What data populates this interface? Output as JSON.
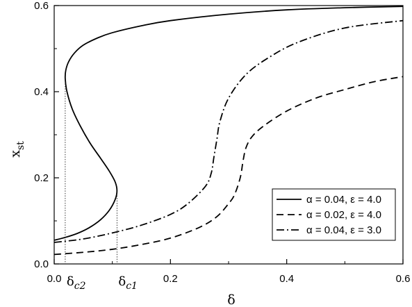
{
  "chart_data": {
    "type": "line",
    "xlabel": "δ",
    "ylabel": "x",
    "ylabel_sub": "st",
    "xlim": [
      0.0,
      0.6
    ],
    "ylim": [
      0.0,
      0.6
    ],
    "xticks": [
      "0.0",
      "0.2",
      "0.4",
      "0.6"
    ],
    "yticks": [
      "0.0",
      "0.2",
      "0.4",
      "0.6"
    ],
    "grid": false,
    "legend_position": "bottom-right",
    "series": [
      {
        "name": "α = 0.04, ε = 4.0",
        "style": "solid",
        "points": [
          [
            0.0,
            0.055
          ],
          [
            0.02,
            0.062
          ],
          [
            0.04,
            0.071
          ],
          [
            0.06,
            0.084
          ],
          [
            0.08,
            0.103
          ],
          [
            0.095,
            0.125
          ],
          [
            0.105,
            0.15
          ],
          [
            0.108,
            0.17
          ],
          [
            0.105,
            0.19
          ],
          [
            0.095,
            0.215
          ],
          [
            0.08,
            0.245
          ],
          [
            0.062,
            0.28
          ],
          [
            0.045,
            0.32
          ],
          [
            0.031,
            0.36
          ],
          [
            0.022,
            0.4
          ],
          [
            0.019,
            0.43
          ],
          [
            0.02,
            0.45
          ],
          [
            0.025,
            0.47
          ],
          [
            0.035,
            0.49
          ],
          [
            0.05,
            0.508
          ],
          [
            0.075,
            0.525
          ],
          [
            0.1,
            0.537
          ],
          [
            0.15,
            0.553
          ],
          [
            0.2,
            0.565
          ],
          [
            0.3,
            0.58
          ],
          [
            0.4,
            0.59
          ],
          [
            0.5,
            0.595
          ],
          [
            0.6,
            0.598
          ]
        ]
      },
      {
        "name": "α = 0.02, ε = 4.0",
        "style": "dashed",
        "points": [
          [
            0.0,
            0.022
          ],
          [
            0.05,
            0.027
          ],
          [
            0.1,
            0.034
          ],
          [
            0.15,
            0.045
          ],
          [
            0.2,
            0.06
          ],
          [
            0.25,
            0.085
          ],
          [
            0.28,
            0.11
          ],
          [
            0.3,
            0.14
          ],
          [
            0.31,
            0.16
          ],
          [
            0.32,
            0.2
          ],
          [
            0.325,
            0.24
          ],
          [
            0.33,
            0.27
          ],
          [
            0.34,
            0.295
          ],
          [
            0.36,
            0.32
          ],
          [
            0.4,
            0.355
          ],
          [
            0.45,
            0.385
          ],
          [
            0.5,
            0.405
          ],
          [
            0.55,
            0.423
          ],
          [
            0.6,
            0.435
          ]
        ]
      },
      {
        "name": "α = 0.04, ε = 3.0",
        "style": "dashdot",
        "points": [
          [
            0.0,
            0.05
          ],
          [
            0.05,
            0.058
          ],
          [
            0.1,
            0.072
          ],
          [
            0.15,
            0.09
          ],
          [
            0.2,
            0.115
          ],
          [
            0.23,
            0.14
          ],
          [
            0.26,
            0.18
          ],
          [
            0.27,
            0.21
          ],
          [
            0.275,
            0.25
          ],
          [
            0.28,
            0.29
          ],
          [
            0.285,
            0.33
          ],
          [
            0.3,
            0.385
          ],
          [
            0.33,
            0.44
          ],
          [
            0.37,
            0.48
          ],
          [
            0.42,
            0.515
          ],
          [
            0.5,
            0.548
          ],
          [
            0.6,
            0.565
          ]
        ]
      }
    ],
    "annotations": [
      {
        "label": "δ",
        "sub": "c2",
        "x": 0.019,
        "y_top": 0.43
      },
      {
        "label": "δ",
        "sub": "c1",
        "x": 0.108,
        "y_top": 0.17
      }
    ]
  }
}
